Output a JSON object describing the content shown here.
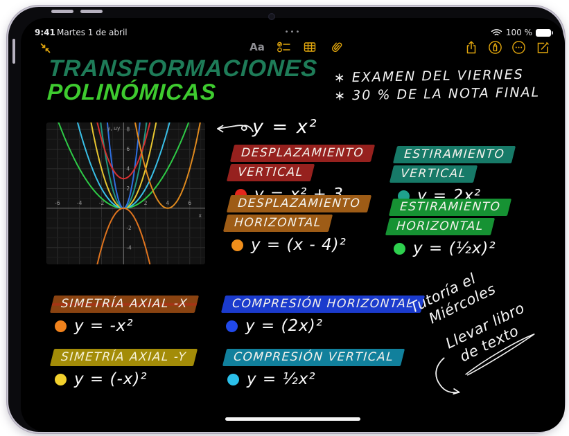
{
  "status": {
    "time": "9:41",
    "date": "Martes 1 de abril",
    "battery_label": "100 %",
    "multitask_dots": "•••"
  },
  "toolbar": {
    "format_label": "Aa",
    "icons_left": [
      "collapse-handwriting-icon"
    ],
    "icons_center": [
      "format-icon",
      "checklist-icon",
      "table-icon",
      "paperclip-icon"
    ],
    "icons_right": [
      "share-icon",
      "markup-icon",
      "more-icon",
      "compose-icon"
    ]
  },
  "title": {
    "line1": "TRANSFORMACIONES",
    "line2": "POLINÓMICAS"
  },
  "accent_colors": {
    "toolbar_accent": "#e3a70d",
    "title_line1": "#1e7c58",
    "title_line2": "#3ecb2f"
  },
  "exam_notes": {
    "line1": "∗ EXAMEN DEL VIERNES",
    "line2": "∗ 30 % DE LA NOTA FINAL"
  },
  "graph_annotation": "y = x²",
  "chart_data": {
    "type": "line",
    "title": "",
    "xlabel": "x",
    "ylabel": "y, uy",
    "xlim": [
      -7,
      7.4
    ],
    "ylim": [
      -5.7,
      8.7
    ],
    "x_ticks": [
      -6,
      -4,
      -2,
      2,
      4,
      6
    ],
    "y_ticks": [
      8,
      6,
      4,
      2,
      -2,
      -4
    ],
    "grid": true,
    "series_note": "parabolas y = a(x-h)^2 + k",
    "series": [
      {
        "name": "y = (½x)²",
        "a": 0.25,
        "h": 0,
        "k": 0,
        "color": "#2ecc47"
      },
      {
        "name": "y = ½x²",
        "a": 0.5,
        "h": 0,
        "k": 0,
        "color": "#39c0e8"
      },
      {
        "name": "y = (-x)²",
        "a": 1,
        "h": 0,
        "k": 0,
        "color": "#e8c630"
      },
      {
        "name": "y = 2x²",
        "a": 2,
        "h": 0,
        "k": 0,
        "color": "#20967f"
      },
      {
        "name": "y = (2x)²",
        "a": 4,
        "h": 0,
        "k": 0,
        "color": "#2f6fe0"
      },
      {
        "name": "y = x² + 3",
        "a": 1,
        "h": 0,
        "k": 3,
        "color": "#d63031"
      },
      {
        "name": "y = (x - 4)²",
        "a": 1,
        "h": 4,
        "k": 0,
        "color": "#e08a1e"
      },
      {
        "name": "y = -x²",
        "a": -1,
        "h": 0,
        "k": 0,
        "color": "#e0741e"
      }
    ]
  },
  "sections": [
    {
      "title_line1": "DESPLAZAMIENTO",
      "title_line2": "VERTICAL",
      "highlight_color": "#96211e",
      "bullet_color": "#e3261c",
      "equation": "y = x² + 3"
    },
    {
      "title_line1": "ESTIRAMIENTO",
      "title_line2": "VERTICAL",
      "highlight_color": "#177a68",
      "bullet_color": "#1fa18c",
      "equation": "y = 2x²"
    },
    {
      "title_line1": "DESPLAZAMIENTO",
      "title_line2": "HORIZONTAL",
      "highlight_color": "#9e5c16",
      "bullet_color": "#ef8e1b",
      "equation": "y = (x - 4)²"
    },
    {
      "title_line1": "ESTIRAMIENTO",
      "title_line2": "HORIZONTAL",
      "highlight_color": "#169233",
      "bullet_color": "#2ed04e",
      "equation": "y = (½x)²"
    },
    {
      "title_line1": "SIMETRÍA AXIAL -X",
      "highlight_color": "#8a4311",
      "bullet_color": "#f0821c",
      "equation": "y = -x²"
    },
    {
      "title_line1": "COMPRESIÓN HORIZONTAL",
      "highlight_color": "#1b3bcd",
      "bullet_color": "#2149ea",
      "equation": "y = (2x)²"
    },
    {
      "title_line1": "SIMETRÍA AXIAL -Y",
      "highlight_color": "#a38c08",
      "bullet_color": "#f2d12d",
      "equation": "y = (-x)²"
    },
    {
      "title_line1": "COMPRESIÓN VERTICAL",
      "highlight_color": "#11809c",
      "bullet_color": "#2bc0ea",
      "equation": "y = ½x²"
    }
  ],
  "side_note": {
    "line1": "Tutoría el",
    "line2": "Miércoles",
    "line3": "Llevar libro",
    "line4": "de texto"
  }
}
